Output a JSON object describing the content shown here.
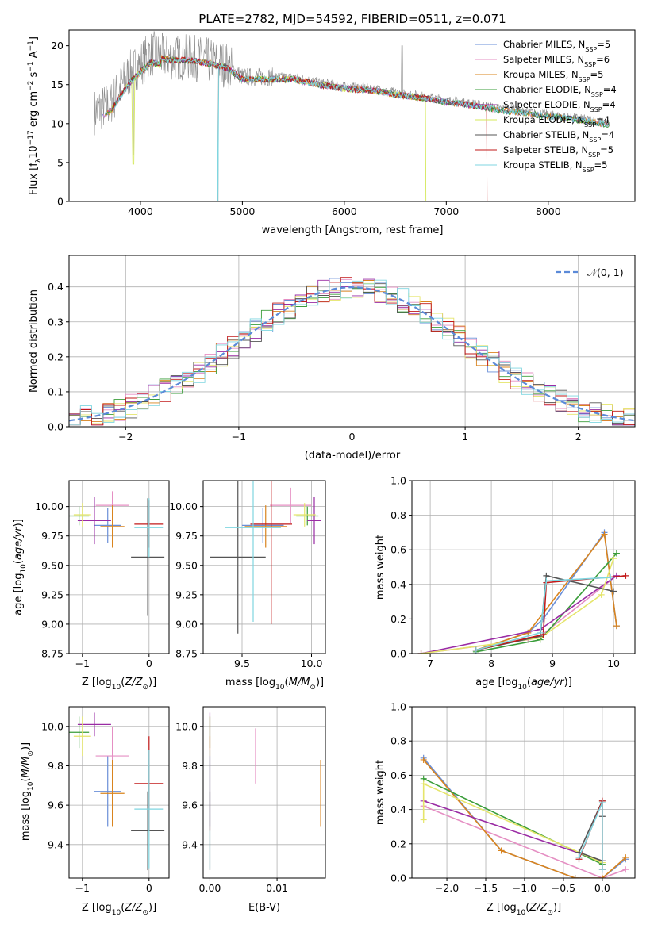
{
  "figure": {
    "title": "PLATE=2782, MJD=54592, FIBERID=0511, z=0.071"
  },
  "colors": [
    "#6a8fd8",
    "#e58fc3",
    "#d9841e",
    "#3a9d3a",
    "#9a2ca4",
    "#e5e56a",
    "#555555",
    "#c21a1a",
    "#7fd6e0",
    "#8c8c8c"
  ],
  "models": [
    {
      "label": "Chabrier MILES, N",
      "sub": "SSP",
      "suffix": "=5",
      "color": "#6a8fd8"
    },
    {
      "label": "Salpeter MILES, N",
      "sub": "SSP",
      "suffix": "=6",
      "color": "#e58fc3"
    },
    {
      "label": "Kroupa MILES, N",
      "sub": "SSP",
      "suffix": "=5",
      "color": "#d9841e"
    },
    {
      "label": "Chabrier ELODIE, N",
      "sub": "SSP",
      "suffix": "=4",
      "color": "#3a9d3a"
    },
    {
      "label": "Salpeter ELODIE, N",
      "sub": "SSP",
      "suffix": "=4",
      "color": "#9a2ca4"
    },
    {
      "label": "Kroupa ELODIE, N",
      "sub": "SSP",
      "suffix": "=4",
      "color": "#d4e85a"
    },
    {
      "label": "Chabrier STELIB, N",
      "sub": "SSP",
      "suffix": "=4",
      "color": "#555555"
    },
    {
      "label": "Salpeter STELIB, N",
      "sub": "SSP",
      "suffix": "=5",
      "color": "#c21a1a"
    },
    {
      "label": "Kroupa STELIB, N",
      "sub": "SSP",
      "suffix": "=5",
      "color": "#7fd6e0"
    }
  ],
  "chart_data": [
    {
      "id": "spectrum",
      "type": "line",
      "xlabel": "wavelength [Angstrom, rest frame]",
      "ylabel": "Flux [f_λ 10^-17 erg cm^-2 s^-1 A^-1]",
      "xlim": [
        3300,
        8850
      ],
      "ylim": [
        0,
        22
      ],
      "xticks": [
        4000,
        5000,
        6000,
        7000,
        8000
      ],
      "yticks": [
        0,
        5,
        10,
        15,
        20
      ],
      "continuum": [
        [
          3550,
          11.5
        ],
        [
          3700,
          12.5
        ],
        [
          3900,
          16.5
        ],
        [
          4100,
          19
        ],
        [
          4300,
          18.5
        ],
        [
          4500,
          18.5
        ],
        [
          4700,
          18
        ],
        [
          4850,
          17.5
        ],
        [
          5000,
          16
        ],
        [
          5200,
          16
        ],
        [
          5500,
          16
        ],
        [
          5800,
          15.2
        ],
        [
          6000,
          14.8
        ],
        [
          6300,
          14.5
        ],
        [
          6500,
          14
        ],
        [
          6800,
          13.5
        ],
        [
          7000,
          13
        ],
        [
          7300,
          12.5
        ],
        [
          7500,
          12
        ],
        [
          7800,
          11.5
        ],
        [
          8100,
          11
        ],
        [
          8400,
          10.5
        ],
        [
          8600,
          10
        ]
      ]
    },
    {
      "id": "residuals",
      "type": "histogram",
      "xlabel": "(data-model)/error",
      "ylabel": "Normed distribution",
      "xlim": [
        -2.5,
        2.5
      ],
      "ylim": [
        0,
        0.49
      ],
      "xticks": [
        -2,
        -1,
        0,
        1,
        2
      ],
      "yticks": [
        0.0,
        0.1,
        0.2,
        0.3,
        0.4
      ],
      "legend": "𝒩(0, 1)",
      "bin_width": 0.1
    },
    {
      "id": "age_vs_Z",
      "type": "scatter",
      "xlabel": "Z [log10(Z/Z⊙)]",
      "ylabel": "age  [log10(age/yr)]",
      "xlim": [
        -1.2,
        0.3
      ],
      "ylim": [
        8.75,
        10.22
      ],
      "xticks": [
        -1,
        0
      ],
      "yticks": [
        8.75,
        9.0,
        9.25,
        9.5,
        9.75,
        10.0
      ],
      "points": [
        {
          "x": -0.62,
          "y": 9.84,
          "xerr": 0.2,
          "yerr": 0.15,
          "c": 0
        },
        {
          "x": -0.55,
          "y": 10.01,
          "xerr": 0.25,
          "yerr": 0.12,
          "c": 1
        },
        {
          "x": -0.55,
          "y": 9.83,
          "xerr": 0.18,
          "yerr": 0.18,
          "c": 2
        },
        {
          "x": -1.05,
          "y": 9.92,
          "xerr": 0.15,
          "yerr": 0.08,
          "c": 3
        },
        {
          "x": -0.82,
          "y": 9.88,
          "xerr": 0.25,
          "yerr": 0.2,
          "c": 4
        },
        {
          "x": -1.0,
          "y": 9.93,
          "xerr": 0.13,
          "yerr": 0.1,
          "c": 5
        },
        {
          "x": -0.02,
          "y": 9.57,
          "xerr": 0.25,
          "yerr": 0.5,
          "c": 6
        },
        {
          "x": 0.0,
          "y": 9.85,
          "xerr": 0.22,
          "yerr": 0.2,
          "c": 7
        },
        {
          "x": 0.0,
          "y": 9.82,
          "xerr": 0.22,
          "yerr": 0.25,
          "c": 8
        }
      ]
    },
    {
      "id": "age_vs_mass",
      "type": "scatter",
      "xlabel": "mass [log10(M/M⊙)]",
      "ylabel": "",
      "xlim": [
        9.22,
        10.1
      ],
      "ylim": [
        8.75,
        10.22
      ],
      "xticks": [
        9.5,
        10.0
      ],
      "yticks": [
        8.75,
        9.0,
        9.25,
        9.5,
        9.75,
        10.0
      ],
      "points": [
        {
          "x": 9.65,
          "y": 9.84,
          "xerr": 0.15,
          "yerr": 0.15,
          "c": 0
        },
        {
          "x": 9.85,
          "y": 10.01,
          "xerr": 0.15,
          "yerr": 0.15,
          "c": 1
        },
        {
          "x": 9.67,
          "y": 9.83,
          "xerr": 0.15,
          "yerr": 0.18,
          "c": 2
        },
        {
          "x": 9.97,
          "y": 9.92,
          "xerr": 0.08,
          "yerr": 0.08,
          "c": 3
        },
        {
          "x": 10.02,
          "y": 9.88,
          "xerr": 0.05,
          "yerr": 0.2,
          "c": 4
        },
        {
          "x": 9.95,
          "y": 9.93,
          "xerr": 0.08,
          "yerr": 0.1,
          "c": 5
        },
        {
          "x": 9.47,
          "y": 9.57,
          "xerr": 0.2,
          "yerr": 0.65,
          "c": 6
        },
        {
          "x": 9.71,
          "y": 9.85,
          "xerr": 0.15,
          "yerr": 0.85,
          "c": 7
        },
        {
          "x": 9.58,
          "y": 9.82,
          "xerr": 0.2,
          "yerr": 0.8,
          "c": 8
        }
      ]
    },
    {
      "id": "weight_vs_age",
      "type": "line",
      "xlabel": "age  [log10(age/yr)]",
      "ylabel": "mass weight",
      "xlim": [
        6.7,
        10.35
      ],
      "ylim": [
        0,
        1
      ],
      "xticks": [
        7,
        8,
        9,
        10
      ],
      "yticks": [
        0.0,
        0.2,
        0.4,
        0.6,
        0.8,
        1.0
      ],
      "series": [
        {
          "c": 0,
          "pts": [
            [
              7.75,
              0.02
            ],
            [
              8.6,
              0.12
            ],
            [
              8.85,
              0.2
            ],
            [
              9.85,
              0.7
            ],
            [
              10.05,
              0.16
            ]
          ]
        },
        {
          "c": 1,
          "pts": [
            [
              6.85,
              0.0
            ],
            [
              8.6,
              0.08
            ],
            [
              8.8,
              0.1
            ],
            [
              10.05,
              0.45
            ]
          ]
        },
        {
          "c": 2,
          "pts": [
            [
              7.75,
              0.02
            ],
            [
              8.6,
              0.12
            ],
            [
              9.85,
              0.69
            ],
            [
              10.05,
              0.16
            ]
          ]
        },
        {
          "c": 3,
          "pts": [
            [
              7.75,
              0.01
            ],
            [
              8.8,
              0.08
            ],
            [
              10.05,
              0.58
            ]
          ]
        },
        {
          "c": 4,
          "pts": [
            [
              6.85,
              0.0
            ],
            [
              8.8,
              0.14
            ],
            [
              10.05,
              0.45
            ]
          ]
        },
        {
          "c": 5,
          "pts": [
            [
              6.85,
              0.0
            ],
            [
              8.8,
              0.09
            ],
            [
              9.8,
              0.34
            ],
            [
              10.0,
              0.55
            ]
          ]
        },
        {
          "c": 6,
          "pts": [
            [
              7.75,
              0.02
            ],
            [
              8.8,
              0.1
            ],
            [
              8.9,
              0.45
            ],
            [
              10.0,
              0.36
            ]
          ]
        },
        {
          "c": 7,
          "pts": [
            [
              7.75,
              0.02
            ],
            [
              8.85,
              0.11
            ],
            [
              8.9,
              0.41
            ],
            [
              10.2,
              0.45
            ]
          ]
        },
        {
          "c": 8,
          "pts": [
            [
              7.75,
              0.02
            ],
            [
              8.8,
              0.12
            ],
            [
              8.9,
              0.42
            ],
            [
              9.95,
              0.44
            ]
          ]
        }
      ]
    },
    {
      "id": "mass_vs_Z",
      "type": "scatter",
      "xlabel": "Z [log10(Z/Z⊙)]",
      "ylabel": "mass [log10(M/M⊙)]",
      "xlim": [
        -1.2,
        0.3
      ],
      "ylim": [
        9.23,
        10.1
      ],
      "xticks": [
        -1,
        0
      ],
      "yticks": [
        9.4,
        9.6,
        9.8,
        10.0
      ],
      "points": [
        {
          "x": -0.62,
          "y": 9.67,
          "xerr": 0.2,
          "yerr": 0.18,
          "c": 0
        },
        {
          "x": -0.55,
          "y": 9.85,
          "xerr": 0.25,
          "yerr": 0.15,
          "c": 1
        },
        {
          "x": -0.55,
          "y": 9.66,
          "xerr": 0.18,
          "yerr": 0.17,
          "c": 2
        },
        {
          "x": -1.05,
          "y": 9.97,
          "xerr": 0.15,
          "yerr": 0.08,
          "c": 3
        },
        {
          "x": -0.82,
          "y": 10.01,
          "xerr": 0.25,
          "yerr": 0.06,
          "c": 4
        },
        {
          "x": -1.0,
          "y": 9.95,
          "xerr": 0.13,
          "yerr": 0.1,
          "c": 5
        },
        {
          "x": -0.02,
          "y": 9.47,
          "xerr": 0.25,
          "yerr": 0.2,
          "c": 6
        },
        {
          "x": 0.0,
          "y": 9.71,
          "xerr": 0.22,
          "yerr": 0.24,
          "c": 7
        },
        {
          "x": 0.0,
          "y": 9.58,
          "xerr": 0.22,
          "yerr": 0.3,
          "c": 8
        }
      ]
    },
    {
      "id": "mass_vs_EBV",
      "type": "scatter",
      "xlabel": "E(B-V)",
      "ylabel": "",
      "xlim": [
        -0.001,
        0.0172
      ],
      "ylim": [
        9.23,
        10.1
      ],
      "xticks": [
        0.0,
        0.01
      ],
      "yticks": [
        9.4,
        9.6,
        9.8,
        10.0
      ],
      "points": [
        {
          "x": 0.0,
          "y": 9.67,
          "xerr": 0,
          "yerr": 0.18,
          "c": 0
        },
        {
          "x": 0.0068,
          "y": 9.85,
          "xerr": 0,
          "yerr": 0.14,
          "c": 1
        },
        {
          "x": 0.0165,
          "y": 9.66,
          "xerr": 0,
          "yerr": 0.17,
          "c": 2
        },
        {
          "x": 0.0,
          "y": 9.97,
          "xerr": 0,
          "yerr": 0.08,
          "c": 3
        },
        {
          "x": 0.0,
          "y": 10.01,
          "xerr": 0,
          "yerr": 0.06,
          "c": 4
        },
        {
          "x": 0.0,
          "y": 9.95,
          "xerr": 0,
          "yerr": 0.1,
          "c": 5
        },
        {
          "x": 0.0,
          "y": 9.47,
          "xerr": 0,
          "yerr": 0.2,
          "c": 6
        },
        {
          "x": 0.0,
          "y": 9.71,
          "xerr": 0,
          "yerr": 0.24,
          "c": 7
        },
        {
          "x": 0.0,
          "y": 9.58,
          "xerr": 0,
          "yerr": 0.3,
          "c": 8
        }
      ]
    },
    {
      "id": "weight_vs_Z",
      "type": "line",
      "xlabel": "Z [log10(Z/Z⊙)]",
      "ylabel": "mass weight",
      "xlim": [
        -2.45,
        0.42
      ],
      "ylim": [
        0,
        1
      ],
      "xticks": [
        -2.0,
        -1.5,
        -1.0,
        -0.5,
        0.0
      ],
      "yticks": [
        0.0,
        0.2,
        0.4,
        0.6,
        0.8,
        1.0
      ],
      "series": [
        {
          "c": 0,
          "pts": [
            [
              -2.3,
              0.7
            ],
            [
              -1.3,
              0.16
            ],
            [
              -0.35,
              0.0
            ],
            [
              0.0,
              0.0
            ],
            [
              0.3,
              0.11
            ]
          ]
        },
        {
          "c": 1,
          "pts": [
            [
              -2.3,
              0.42
            ],
            [
              0.0,
              0.0
            ],
            [
              0.3,
              0.05
            ]
          ]
        },
        {
          "c": 2,
          "pts": [
            [
              -2.3,
              0.69
            ],
            [
              -1.3,
              0.16
            ],
            [
              -0.35,
              0.0
            ],
            [
              0.0,
              0.0
            ],
            [
              0.3,
              0.12
            ]
          ]
        },
        {
          "c": 3,
          "pts": [
            [
              -2.3,
              0.58
            ],
            [
              0.0,
              0.08
            ]
          ]
        },
        {
          "c": 4,
          "pts": [
            [
              -2.3,
              0.45
            ],
            [
              0.0,
              0.1
            ]
          ]
        },
        {
          "c": 5,
          "pts": [
            [
              -2.3,
              0.34
            ],
            [
              -2.3,
              0.55
            ],
            [
              0.0,
              0.09
            ]
          ]
        },
        {
          "c": 6,
          "pts": [
            [
              -0.0,
              0.36
            ],
            [
              -0.0,
              0.45
            ],
            [
              -0.3,
              0.15
            ],
            [
              0.0,
              0.1
            ]
          ]
        },
        {
          "c": 7,
          "pts": [
            [
              -0.3,
              0.11
            ],
            [
              0.0,
              0.45
            ],
            [
              0.0,
              0.05
            ]
          ]
        },
        {
          "c": 8,
          "pts": [
            [
              -0.3,
              0.12
            ],
            [
              0.0,
              0.44
            ],
            [
              0.0,
              0.05
            ]
          ]
        }
      ]
    }
  ]
}
